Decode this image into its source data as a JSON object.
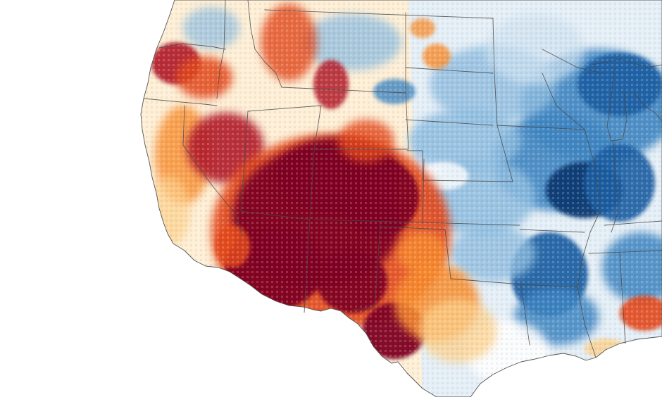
{
  "map": {
    "kind": "anomaly-raster-map",
    "region": "western-central-united-states",
    "palette": {
      "extreme_dry": "#7f0020",
      "very_dry": "#b21e2b",
      "dry": "#e34a1f",
      "moderately_dry": "#f88d2f",
      "slightly_dry": "#fdd08a",
      "neutral": "#ffffff",
      "slightly_wet": "#cfe2f1",
      "moderately_wet": "#8fbde0",
      "wet": "#3f86c2",
      "very_wet": "#1a5fa3",
      "extreme_wet": "#0c3a73",
      "boundary": "#4a4a4a",
      "background": "#ffffff"
    },
    "anomaly_regions": [
      {
        "name": "desert-southwest-core",
        "category": "extreme_dry"
      },
      {
        "name": "far-west-texas-core",
        "category": "extreme_dry"
      },
      {
        "name": "oregon-coast",
        "category": "very_dry"
      },
      {
        "name": "northern-rockies",
        "category": "dry"
      },
      {
        "name": "texas-panhandle",
        "category": "moderately_dry"
      },
      {
        "name": "california-central",
        "category": "slightly_dry"
      },
      {
        "name": "upper-midwest",
        "category": "very_wet"
      },
      {
        "name": "mid-mississippi-valley",
        "category": "extreme_wet"
      },
      {
        "name": "lower-mississippi-valley",
        "category": "very_wet"
      },
      {
        "name": "northern-plains",
        "category": "moderately_wet"
      },
      {
        "name": "gulf-coast-southeast",
        "category": "dry"
      }
    ]
  }
}
